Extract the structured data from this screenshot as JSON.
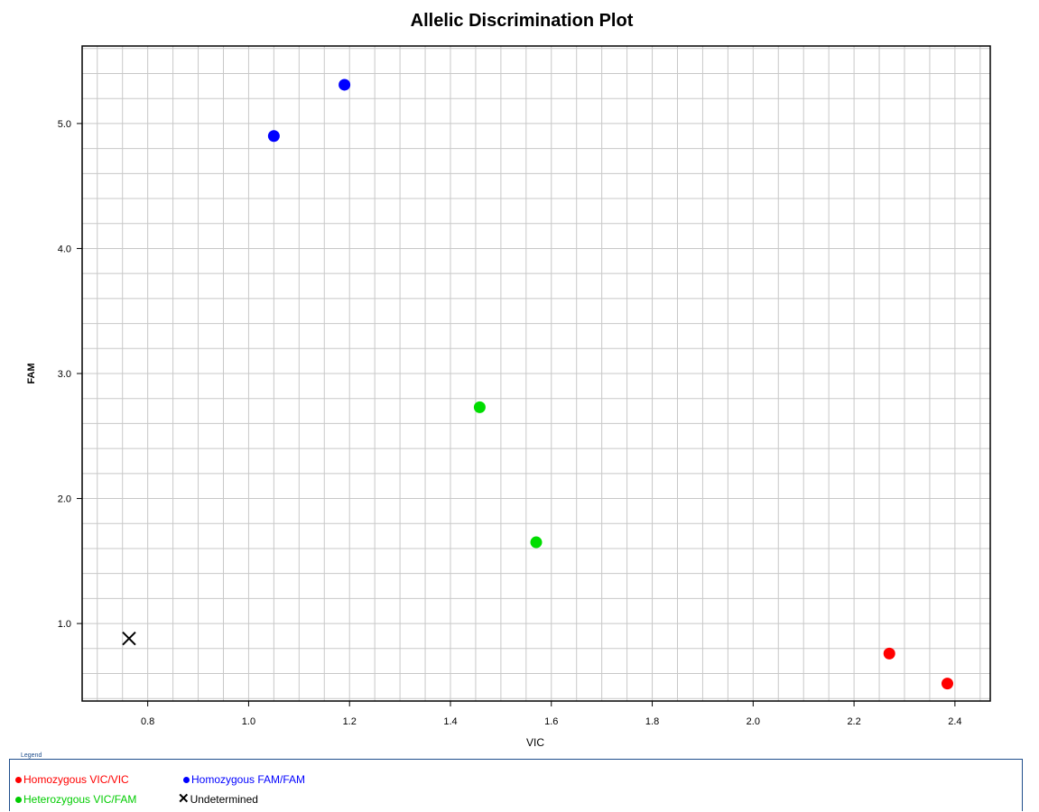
{
  "chart_data": {
    "type": "scatter",
    "title": "Allelic Discrimination Plot",
    "xlabel": "VIC",
    "ylabel": "FAM",
    "xlim": [
      0.67,
      2.47
    ],
    "ylim": [
      0.38,
      5.62
    ],
    "xticks": [
      "0.8",
      "1.0",
      "1.2",
      "1.4",
      "1.6",
      "1.8",
      "2.0",
      "2.2",
      "2.4"
    ],
    "yticks": [
      "1.0",
      "2.0",
      "3.0",
      "4.0",
      "5.0"
    ],
    "grid": true,
    "series": [
      {
        "name": "Homozygous VIC/VIC",
        "color": "#ff0000",
        "marker": "circle",
        "points": [
          {
            "x": 2.27,
            "y": 0.76
          },
          {
            "x": 2.385,
            "y": 0.52
          }
        ]
      },
      {
        "name": "Homozygous FAM/FAM",
        "color": "#0000ff",
        "marker": "circle",
        "points": [
          {
            "x": 1.05,
            "y": 4.9
          },
          {
            "x": 1.19,
            "y": 5.31
          }
        ]
      },
      {
        "name": "Heterozygous VIC/FAM",
        "color": "#00dd00",
        "marker": "circle",
        "points": [
          {
            "x": 1.458,
            "y": 2.73
          },
          {
            "x": 1.57,
            "y": 1.65
          }
        ]
      },
      {
        "name": "Undetermined",
        "color": "#000000",
        "marker": "x",
        "points": [
          {
            "x": 0.763,
            "y": 0.88
          }
        ]
      }
    ]
  },
  "legend": {
    "title": "Legend",
    "items": [
      {
        "label": "Homozygous VIC/VIC",
        "color": "#ff0000",
        "icon": "red-dot-icon"
      },
      {
        "label": "Homozygous FAM/FAM",
        "color": "#0000ff",
        "icon": "blue-dot-icon"
      },
      {
        "label": "Heterozygous VIC/FAM",
        "color": "#00dd00",
        "icon": "green-dot-icon"
      },
      {
        "label": "Undetermined",
        "color": "#000000",
        "icon": "x-mark-icon"
      }
    ]
  }
}
